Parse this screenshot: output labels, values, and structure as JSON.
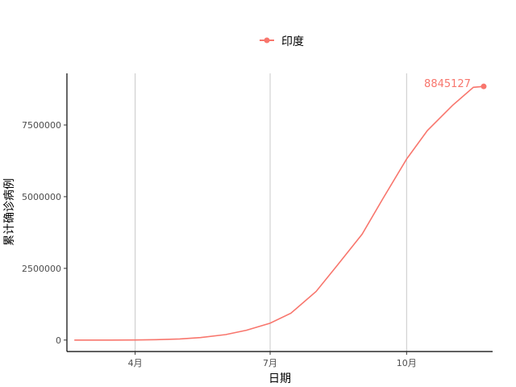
{
  "chart_data": {
    "type": "line",
    "xlabel": "日期",
    "ylabel": "累计确诊病例",
    "x_ticks": [
      "4月",
      "7月",
      "10月"
    ],
    "y_ticks": [
      "0",
      "2500000",
      "5000000",
      "7500000"
    ],
    "y_tick_values": [
      0,
      2500000,
      5000000,
      7500000
    ],
    "ylim": [
      -400000,
      9300000
    ],
    "xlim": [
      "2020-02-15",
      "2020-11-28"
    ],
    "x_tick_dates": [
      "2020-04-01",
      "2020-07-01",
      "2020-10-01"
    ],
    "grid": "vertical major lines",
    "legend_position": "top",
    "series": [
      {
        "name": "印度",
        "color": "#F8766D",
        "points": [
          {
            "x": "2020-02-20",
            "y": 3
          },
          {
            "x": "2020-03-01",
            "y": 3
          },
          {
            "x": "2020-03-15",
            "y": 110
          },
          {
            "x": "2020-04-01",
            "y": 1998
          },
          {
            "x": "2020-04-15",
            "y": 12380
          },
          {
            "x": "2020-05-01",
            "y": 37336
          },
          {
            "x": "2020-05-15",
            "y": 85940
          },
          {
            "x": "2020-06-01",
            "y": 190535
          },
          {
            "x": "2020-06-15",
            "y": 343091
          },
          {
            "x": "2020-07-01",
            "y": 585493
          },
          {
            "x": "2020-07-15",
            "y": 936181
          },
          {
            "x": "2020-08-01",
            "y": 1695988
          },
          {
            "x": "2020-08-15",
            "y": 2589682
          },
          {
            "x": "2020-09-01",
            "y": 3691166
          },
          {
            "x": "2020-09-15",
            "y": 4930236
          },
          {
            "x": "2020-10-01",
            "y": 6312584
          },
          {
            "x": "2020-10-15",
            "y": 7307097
          },
          {
            "x": "2020-11-01",
            "y": 8184082
          },
          {
            "x": "2020-11-15",
            "y": 8814579
          },
          {
            "x": "2020-11-22",
            "y": 8845127
          }
        ],
        "end_label": "8845127"
      }
    ]
  }
}
